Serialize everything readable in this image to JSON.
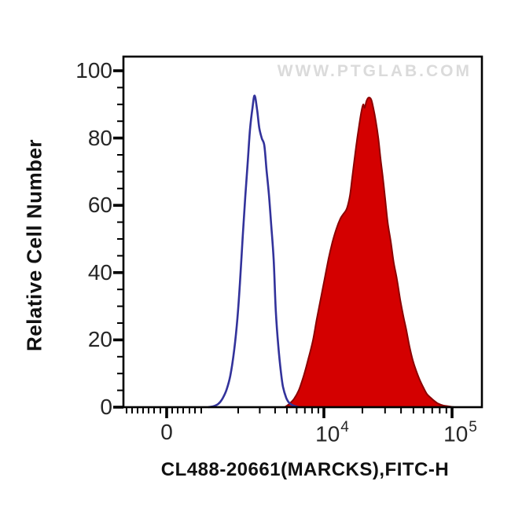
{
  "watermark": "WWW.PTGLAB.COM",
  "colors": {
    "control_line": "#32329b",
    "sample_fill": "#d40000",
    "sample_outline": "#8c0000",
    "axis": "#000000",
    "tick_label": "#262626",
    "watermark": "#dbdbdb"
  },
  "chart_data": {
    "type": "area",
    "subtype": "flow-cytometry-histogram-overlay",
    "xlabel": "CL488-20661(MARCKS),FITC-H",
    "ylabel": "Relative Cell Number",
    "x_scale": "biexponential",
    "grid": false,
    "legend": false,
    "ylim": [
      0,
      104
    ],
    "y_ticks": [
      0,
      20,
      40,
      60,
      80,
      100
    ],
    "y_minor_step": 5,
    "x_ticks": [
      {
        "label": "0",
        "f": 0.1206
      },
      {
        "label": "10^4",
        "f": 0.5592
      },
      {
        "label": "10^5",
        "f": 0.9167
      }
    ],
    "series": [
      {
        "name": "control",
        "style": "open-outline",
        "color": "#32329b",
        "peak": {
          "x_approx": "2.7e3",
          "height": 93
        },
        "points": [
          [
            0.237,
            0
          ],
          [
            0.252,
            0.3
          ],
          [
            0.265,
            1
          ],
          [
            0.276,
            2.5
          ],
          [
            0.287,
            5
          ],
          [
            0.298,
            9.3
          ],
          [
            0.309,
            17
          ],
          [
            0.318,
            26.4
          ],
          [
            0.325,
            36.9
          ],
          [
            0.333,
            50.9
          ],
          [
            0.34,
            62.6
          ],
          [
            0.347,
            73.1
          ],
          [
            0.353,
            82.5
          ],
          [
            0.36,
            89
          ],
          [
            0.366,
            92.6
          ],
          [
            0.373,
            88.3
          ],
          [
            0.379,
            83
          ],
          [
            0.386,
            79.9
          ],
          [
            0.393,
            77.8
          ],
          [
            0.399,
            70.8
          ],
          [
            0.406,
            63.1
          ],
          [
            0.412,
            54.4
          ],
          [
            0.419,
            43.9
          ],
          [
            0.425,
            28.7
          ],
          [
            0.432,
            18.2
          ],
          [
            0.439,
            10.7
          ],
          [
            0.445,
            6.1
          ],
          [
            0.454,
            2.8
          ],
          [
            0.463,
            1.2
          ],
          [
            0.474,
            0.5
          ],
          [
            0.489,
            0
          ]
        ]
      },
      {
        "name": "CL488-20661 (MARCKS)",
        "style": "filled",
        "color": "#d40000",
        "peak": {
          "x_approx": "2.3e4",
          "height": 92
        },
        "points": [
          [
            0.45,
            0
          ],
          [
            0.463,
            1
          ],
          [
            0.476,
            2.5
          ],
          [
            0.489,
            5
          ],
          [
            0.502,
            9
          ],
          [
            0.515,
            14
          ],
          [
            0.529,
            20
          ],
          [
            0.539,
            26
          ],
          [
            0.55,
            32
          ],
          [
            0.561,
            38
          ],
          [
            0.572,
            44
          ],
          [
            0.583,
            49
          ],
          [
            0.594,
            53
          ],
          [
            0.605,
            56
          ],
          [
            0.614,
            57.5
          ],
          [
            0.623,
            59
          ],
          [
            0.632,
            63
          ],
          [
            0.638,
            68
          ],
          [
            0.645,
            74
          ],
          [
            0.651,
            79
          ],
          [
            0.658,
            84
          ],
          [
            0.664,
            88
          ],
          [
            0.669,
            90
          ],
          [
            0.673,
            89
          ],
          [
            0.678,
            91
          ],
          [
            0.684,
            92
          ],
          [
            0.691,
            91.5
          ],
          [
            0.697,
            89
          ],
          [
            0.704,
            85
          ],
          [
            0.711,
            80
          ],
          [
            0.717,
            74
          ],
          [
            0.724,
            68
          ],
          [
            0.73,
            62
          ],
          [
            0.737,
            55
          ],
          [
            0.746,
            49
          ],
          [
            0.754,
            43
          ],
          [
            0.763,
            38
          ],
          [
            0.772,
            32
          ],
          [
            0.781,
            27
          ],
          [
            0.789,
            23
          ],
          [
            0.798,
            18
          ],
          [
            0.807,
            14
          ],
          [
            0.816,
            11
          ],
          [
            0.825,
            8.5
          ],
          [
            0.836,
            6
          ],
          [
            0.846,
            4
          ],
          [
            0.857,
            2.8
          ],
          [
            0.868,
            1.8
          ],
          [
            0.879,
            1
          ],
          [
            0.892,
            0.5
          ],
          [
            0.91,
            0.2
          ],
          [
            0.923,
            0
          ]
        ]
      }
    ]
  }
}
